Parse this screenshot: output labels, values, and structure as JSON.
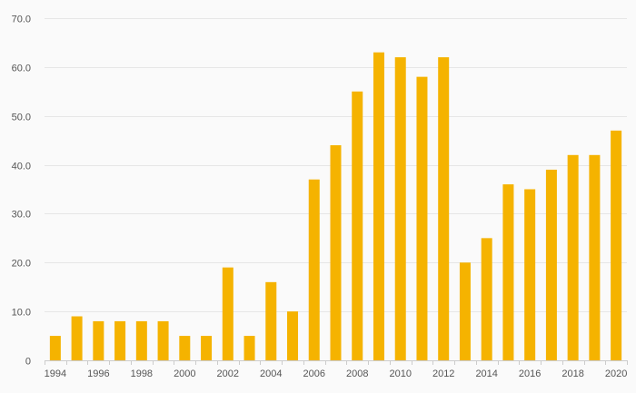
{
  "chart_data": {
    "type": "bar",
    "title": "",
    "xlabel": "",
    "ylabel": "",
    "categories": [
      "1994",
      "1995",
      "1996",
      "1997",
      "1998",
      "1999",
      "2000",
      "2001",
      "2002",
      "2003",
      "2004",
      "2005",
      "2006",
      "2007",
      "2008",
      "2009",
      "2010",
      "2011",
      "2012",
      "2013",
      "2014",
      "2015",
      "2016",
      "2017",
      "2018",
      "2019",
      "2020"
    ],
    "x_tick_labels": [
      "1994",
      "1996",
      "1998",
      "2000",
      "2002",
      "2004",
      "2006",
      "2008",
      "2010",
      "2012",
      "2014",
      "2016",
      "2018",
      "2020"
    ],
    "y_tick_labels": [
      "0",
      "10.0",
      "20.0",
      "30.0",
      "40.0",
      "50.0",
      "60.0",
      "70.0"
    ],
    "y_ticks": [
      0,
      10,
      20,
      30,
      40,
      50,
      60,
      70
    ],
    "values": [
      5,
      9,
      8,
      8,
      8,
      8,
      5,
      5,
      19,
      5,
      16,
      10,
      37,
      44,
      55,
      63,
      62,
      58,
      62,
      20,
      25,
      36,
      35,
      39,
      42,
      42,
      47
    ],
    "ylim": [
      0,
      70
    ],
    "grid": true,
    "legend": "none",
    "colors": {
      "bar": "#f5b300",
      "grid": "#e6e6e6",
      "axis": "#cccccc",
      "text": "#555555"
    }
  }
}
